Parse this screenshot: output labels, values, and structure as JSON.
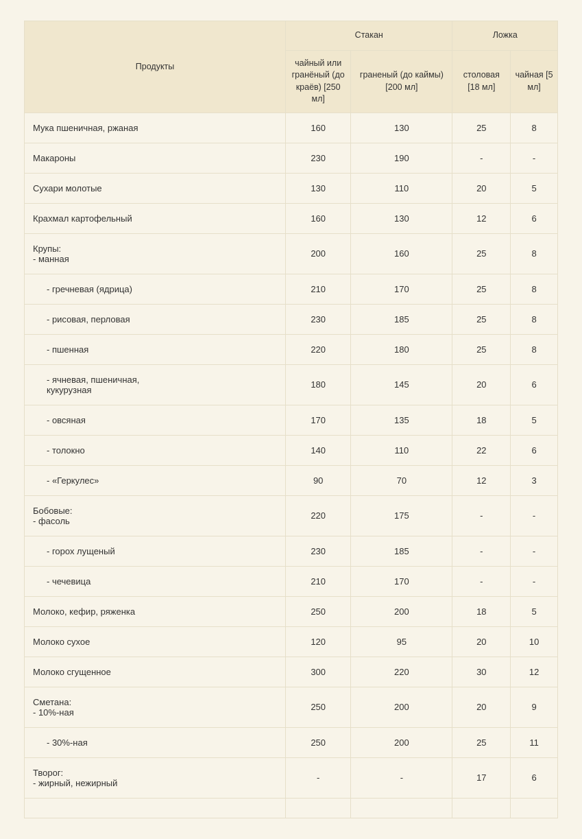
{
  "table": {
    "background_color": "#f8f4e9",
    "header_background_color": "#f0e7ce",
    "border_color": "#e6dfc9",
    "text_color": "#333333",
    "font_size_body": 13,
    "font_size_header": 12.5,
    "headers": {
      "products": "Продукты",
      "glass_group": "Стакан",
      "spoon_group": "Ложка",
      "glass_250": "чайный\nили\nгранёный\n(до краёв)\n[250 мл]",
      "glass_200": "граненый\n(до каймы)[200\nмл]",
      "spoon_table": "столовая\n[18 мл]",
      "spoon_tea": "чайная\n[5 мл]"
    },
    "rows": [
      {
        "name": "Мука пшеничная, ржаная",
        "indent": 0,
        "g250": "160",
        "g200": "130",
        "s18": "25",
        "s5": "8"
      },
      {
        "name": "Макароны",
        "indent": 0,
        "g250": "230",
        "g200": "190",
        "s18": "-",
        "s5": "-"
      },
      {
        "name": "Сухари молотые",
        "indent": 0,
        "g250": "130",
        "g200": "110",
        "s18": "20",
        "s5": "5"
      },
      {
        "name": "Крахмал картофельный",
        "indent": 0,
        "g250": "160",
        "g200": "130",
        "s18": "12",
        "s5": "6"
      },
      {
        "name": "Крупы:\n- манная",
        "indent": 0,
        "g250": "200",
        "g200": "160",
        "s18": "25",
        "s5": "8"
      },
      {
        "name": "- гречневая (ядрица)",
        "indent": 1,
        "g250": "210",
        "g200": "170",
        "s18": "25",
        "s5": "8"
      },
      {
        "name": "- рисовая, перловая",
        "indent": 1,
        "g250": "230",
        "g200": "185",
        "s18": "25",
        "s5": "8"
      },
      {
        "name": "- пшенная",
        "indent": 1,
        "g250": "220",
        "g200": "180",
        "s18": "25",
        "s5": "8"
      },
      {
        "name": "- ячневая, пшеничная,\nкукурузная",
        "indent": 1,
        "g250": "180",
        "g200": "145",
        "s18": "20",
        "s5": "6"
      },
      {
        "name": "- овсяная",
        "indent": 1,
        "g250": "170",
        "g200": "135",
        "s18": "18",
        "s5": "5"
      },
      {
        "name": "- толокно",
        "indent": 1,
        "g250": "140",
        "g200": "110",
        "s18": "22",
        "s5": "6"
      },
      {
        "name": "- «Геркулес»",
        "indent": 1,
        "g250": "90",
        "g200": "70",
        "s18": "12",
        "s5": "3"
      },
      {
        "name": "Бобовые:\n- фасоль",
        "indent": 0,
        "g250": "220",
        "g200": "175",
        "s18": "-",
        "s5": "-"
      },
      {
        "name": "- горох лущеный",
        "indent": 1,
        "g250": "230",
        "g200": "185",
        "s18": "-",
        "s5": "-"
      },
      {
        "name": "- чечевица",
        "indent": 1,
        "g250": "210",
        "g200": "170",
        "s18": "-",
        "s5": "-"
      },
      {
        "name": "Молоко, кефир, ряженка",
        "indent": 0,
        "g250": "250",
        "g200": "200",
        "s18": "18",
        "s5": "5"
      },
      {
        "name": "Молоко сухое",
        "indent": 0,
        "g250": "120",
        "g200": "95",
        "s18": "20",
        "s5": "10"
      },
      {
        "name": "Молоко сгущенное",
        "indent": 0,
        "g250": "300",
        "g200": "220",
        "s18": "30",
        "s5": "12"
      },
      {
        "name": "Сметана:\n- 10%-ная",
        "indent": 0,
        "g250": "250",
        "g200": "200",
        "s18": "20",
        "s5": "9"
      },
      {
        "name": "- 30%-ная",
        "indent": 1,
        "g250": "250",
        "g200": "200",
        "s18": "25",
        "s5": "11"
      },
      {
        "name": "Творог:\n- жирный, нежирный",
        "indent": 0,
        "g250": "-",
        "g200": "-",
        "s18": "17",
        "s5": "6"
      },
      {
        "name": "",
        "indent": 0,
        "g250": "",
        "g200": "",
        "s18": "",
        "s5": ""
      }
    ]
  }
}
